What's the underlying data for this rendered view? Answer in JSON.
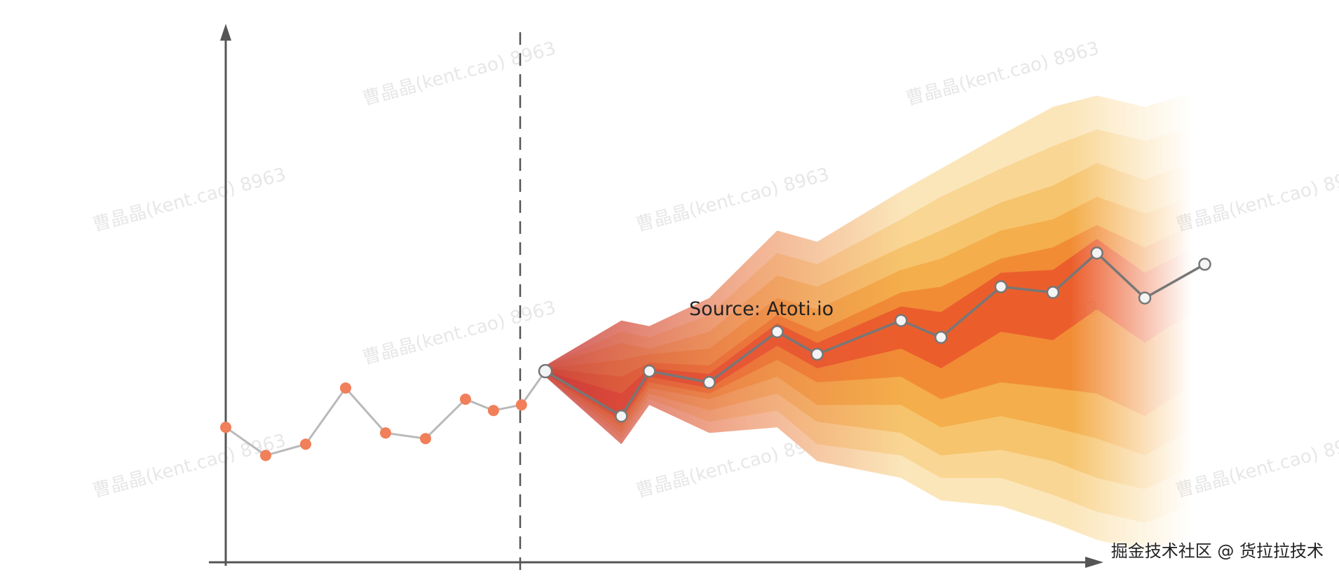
{
  "chart_data": {
    "type": "line",
    "title": "",
    "xlabel": "",
    "ylabel": "",
    "annotation": "Source: Atoti.io",
    "xlim": [
      0,
      25
    ],
    "ylim": [
      0,
      100
    ],
    "grid": false,
    "series": [
      {
        "role": "historical",
        "color": "#f07f5a",
        "line_color": "#b9b9b9",
        "x": [
          0,
          1,
          2,
          3,
          4,
          5,
          6,
          6.7,
          7.4,
          8
        ],
        "y": [
          24,
          19,
          21,
          31,
          23,
          22,
          29,
          27,
          28,
          34
        ]
      },
      {
        "role": "forecast",
        "color": "#777777",
        "marker_fill": "#f4f4f4",
        "x": [
          8,
          9.9,
          10.6,
          12.1,
          13.8,
          14.8,
          16.9,
          17.9,
          19.4,
          20.7,
          21.8,
          23.0,
          24.5
        ],
        "y": [
          34,
          26,
          34,
          32,
          41,
          37,
          43,
          40,
          49,
          48,
          55,
          47,
          53
        ]
      }
    ],
    "fan_bands": {
      "x": [
        8,
        9.9,
        10.6,
        12.1,
        13.8,
        14.8,
        16.9,
        17.9,
        19.4,
        20.7,
        21.8,
        23.0,
        24.5
      ],
      "colors": [
        "#fbe5b6",
        "#f9d691",
        "#f6c36a",
        "#f3ad4a",
        "#f08a34",
        "#ea5c2c"
      ],
      "upper": [
        [
          35,
          43,
          42,
          47,
          59,
          57,
          66,
          70,
          76,
          81,
          83,
          81,
          84
        ],
        [
          35,
          41,
          40,
          44,
          55,
          53,
          61,
          65,
          70,
          74,
          77,
          75,
          78
        ],
        [
          35,
          39,
          38,
          41,
          51,
          49,
          56,
          59,
          64,
          67,
          71,
          68,
          72
        ],
        [
          34.5,
          36,
          37,
          38,
          47,
          45,
          52,
          54,
          59,
          61,
          65,
          62,
          66
        ],
        [
          34.5,
          33,
          35.5,
          35,
          44,
          41,
          48,
          49,
          54,
          56,
          60,
          56,
          61
        ],
        [
          34,
          30,
          34.5,
          33.5,
          42.5,
          39,
          45.5,
          44.5,
          51.5,
          52,
          57.5,
          51.5,
          57
        ]
      ],
      "lower": [
        [
          33,
          21,
          28,
          23,
          24,
          18,
          15,
          11,
          10,
          7,
          4,
          2,
          5
        ],
        [
          33,
          22,
          29,
          25,
          27,
          21,
          19,
          15,
          15,
          12,
          9,
          7,
          11
        ],
        [
          33,
          23,
          30,
          27,
          30,
          25,
          23,
          19,
          20,
          18,
          15,
          13,
          18
        ],
        [
          33.5,
          24,
          31,
          29,
          33,
          28,
          28,
          24,
          26,
          24,
          22,
          19,
          25
        ],
        [
          33.5,
          25,
          32,
          30,
          36,
          32,
          33,
          29,
          32,
          31,
          30,
          26,
          33
        ],
        [
          34,
          25.5,
          33,
          31,
          38.5,
          34.5,
          38,
          34.5,
          41,
          39.5,
          45,
          39,
          46
        ]
      ]
    }
  },
  "credit_text": "掘金技术社区 @ 货拉拉技术",
  "watermark_text": "曹晶晶(kent.cao) 8963"
}
